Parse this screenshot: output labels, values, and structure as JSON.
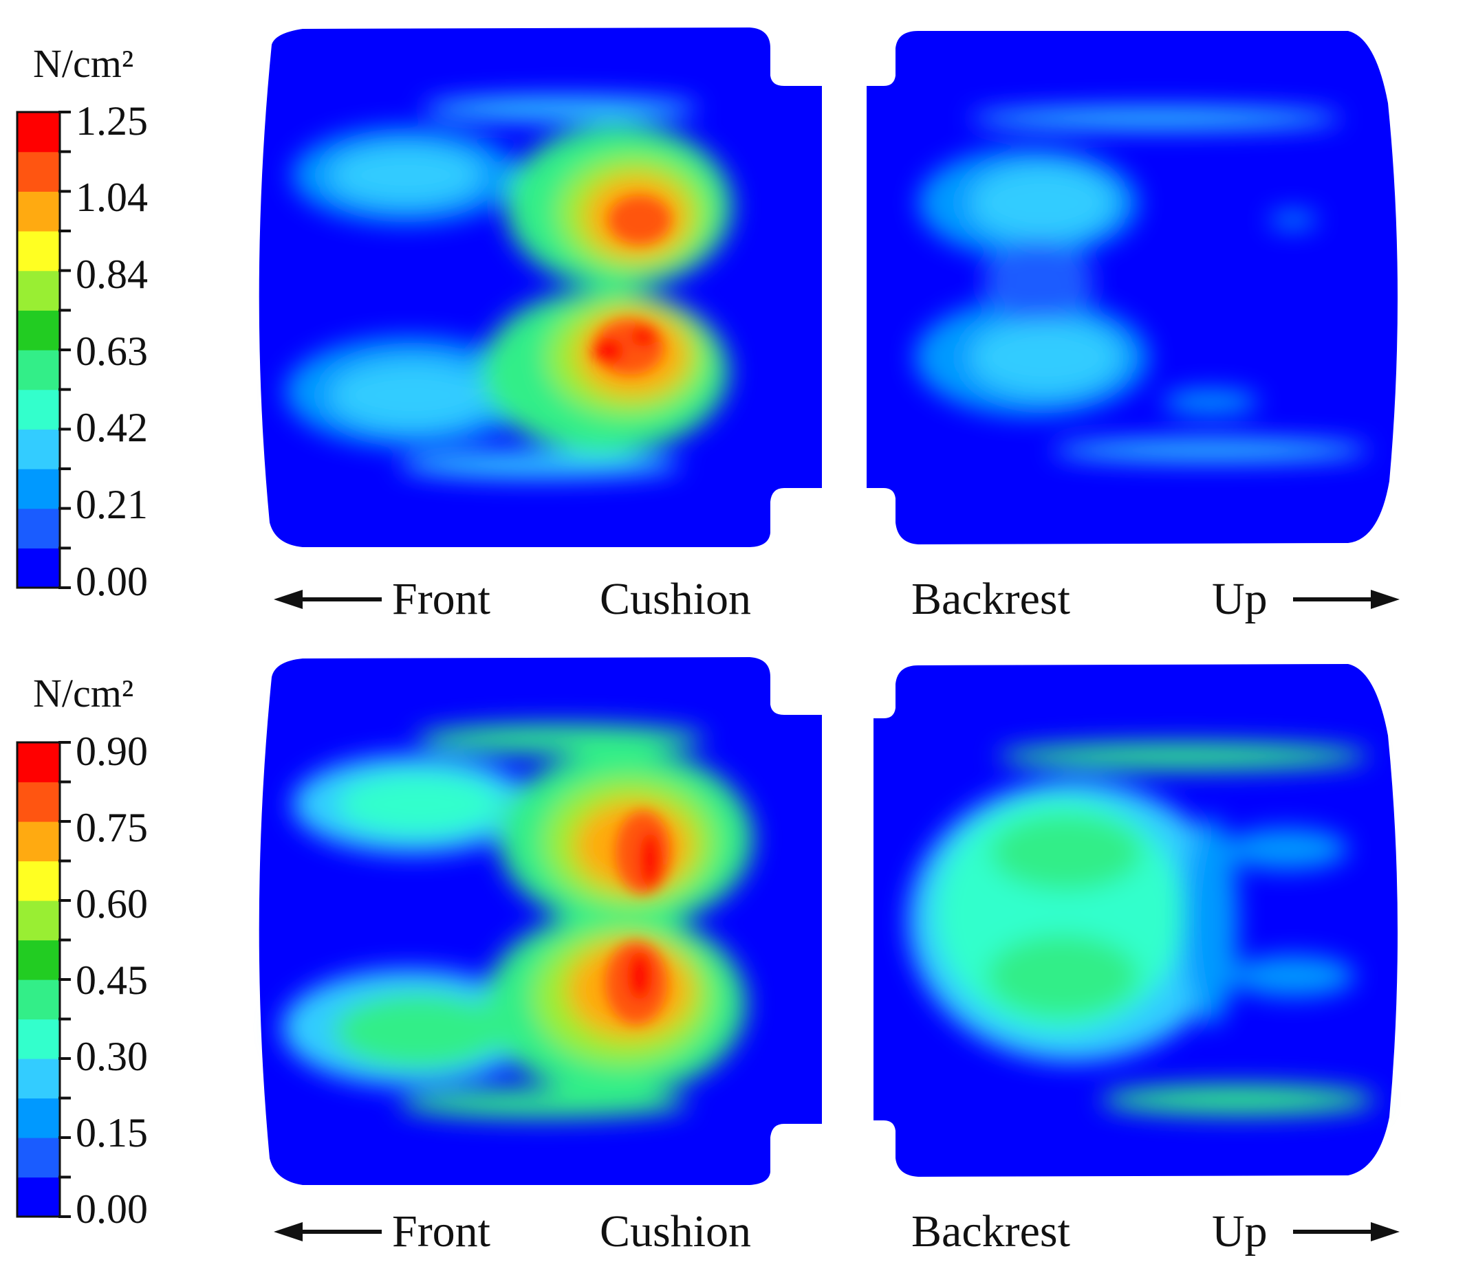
{
  "chart_data": {
    "type": "heatmap",
    "colormap": [
      "#0000ff",
      "#1a5cff",
      "#0099ff",
      "#33ccff",
      "#33ffcc",
      "#33ee88",
      "#22cc22",
      "#99ee33",
      "#ffff22",
      "#ffaa11",
      "#ff5511",
      "#ff0000"
    ],
    "background_color": "#0000ff",
    "panels": [
      {
        "unit": "N/cm²",
        "ticks": [
          "1.25",
          "1.04",
          "0.84",
          "0.63",
          "0.42",
          "0.21",
          "0.00"
        ],
        "range": [
          0.0,
          1.25
        ],
        "labels": {
          "front": "Front",
          "cushion": "Cushion",
          "backrest": "Backrest",
          "up": "Up"
        },
        "peak": {
          "cushion": 1.25,
          "backrest": 0.5
        }
      },
      {
        "unit": "N/cm²",
        "ticks": [
          "0.90",
          "0.75",
          "0.60",
          "0.45",
          "0.30",
          "0.15",
          "0.00"
        ],
        "range": [
          0.0,
          0.9
        ],
        "labels": {
          "front": "Front",
          "cushion": "Cushion",
          "backrest": "Backrest",
          "up": "Up"
        },
        "peak": {
          "cushion": 0.9,
          "backrest": 0.55
        }
      }
    ]
  }
}
